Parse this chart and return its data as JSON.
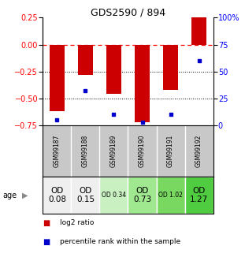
{
  "title": "GDS2590 / 894",
  "samples": [
    "GSM99187",
    "GSM99188",
    "GSM99189",
    "GSM99190",
    "GSM99191",
    "GSM99192"
  ],
  "log2_ratios": [
    -0.62,
    -0.28,
    -0.46,
    -0.72,
    -0.42,
    0.25
  ],
  "percentile_ranks": [
    5,
    32,
    10,
    3,
    10,
    60
  ],
  "ylim_left": [
    -0.75,
    0.25
  ],
  "ylim_right": [
    0,
    100
  ],
  "yticks_left": [
    0.25,
    0,
    -0.25,
    -0.5,
    -0.75
  ],
  "yticks_right": [
    100,
    75,
    50,
    25,
    0
  ],
  "bar_color": "#cc0000",
  "dot_color": "#0000cc",
  "bar_width": 0.55,
  "age_labels": [
    "OD\n0.08",
    "OD\n0.15",
    "OD 0.34",
    "OD\n0.73",
    "OD 1.02",
    "OD\n1.27"
  ],
  "age_colors": [
    "#efefef",
    "#efefef",
    "#c8f0c0",
    "#a0e890",
    "#78d860",
    "#50cc40"
  ],
  "age_fontsize": [
    7.5,
    7.5,
    5.5,
    7.5,
    5.5,
    7.5
  ],
  "sample_bg_color": "#c8c8c8",
  "legend_red_label": "log2 ratio",
  "legend_blue_label": "percentile rank within the sample"
}
